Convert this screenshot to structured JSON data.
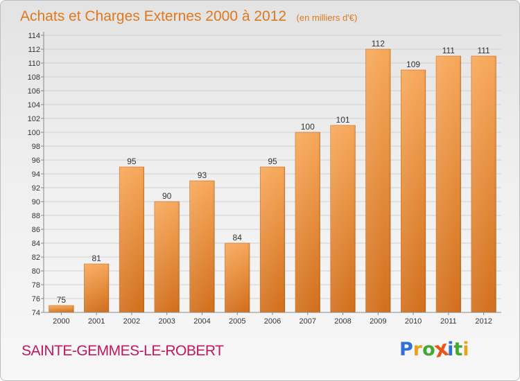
{
  "header": {
    "title": "Achats et Charges Externes 2000 à 2012",
    "unit": "(en milliers d'€)"
  },
  "footer": {
    "city": "SAINTE-GEMMES-LE-ROBERT",
    "logo_letters": [
      {
        "ch": "P",
        "color": "#2f6fd6"
      },
      {
        "ch": "r",
        "color": "#e8a21c"
      },
      {
        "ch": "o",
        "color": "#43a832"
      },
      {
        "ch": "x",
        "color": "#e8561c"
      },
      {
        "ch": "i",
        "color": "#2f6fd6"
      },
      {
        "ch": "t",
        "color": "#43a832"
      },
      {
        "ch": "i",
        "color": "#e8a21c"
      }
    ]
  },
  "chart_data": {
    "type": "bar",
    "title": "Achats et Charges Externes 2000 à 2012",
    "subtitle": "(en milliers d'€)",
    "categories": [
      "2000",
      "2001",
      "2002",
      "2003",
      "2004",
      "2005",
      "2006",
      "2007",
      "2008",
      "2009",
      "2010",
      "2011",
      "2012"
    ],
    "values": [
      75,
      81,
      95,
      90,
      93,
      84,
      95,
      100,
      101,
      112,
      109,
      111,
      111
    ],
    "ylim": [
      74,
      114
    ],
    "yticks": [
      74,
      76,
      78,
      80,
      82,
      84,
      86,
      88,
      90,
      92,
      94,
      96,
      98,
      100,
      102,
      104,
      106,
      108,
      110,
      112,
      114
    ],
    "grid": true,
    "legend": "none",
    "bar_color_top": "#f7a85a",
    "bar_color_bottom": "#d26f1c"
  }
}
